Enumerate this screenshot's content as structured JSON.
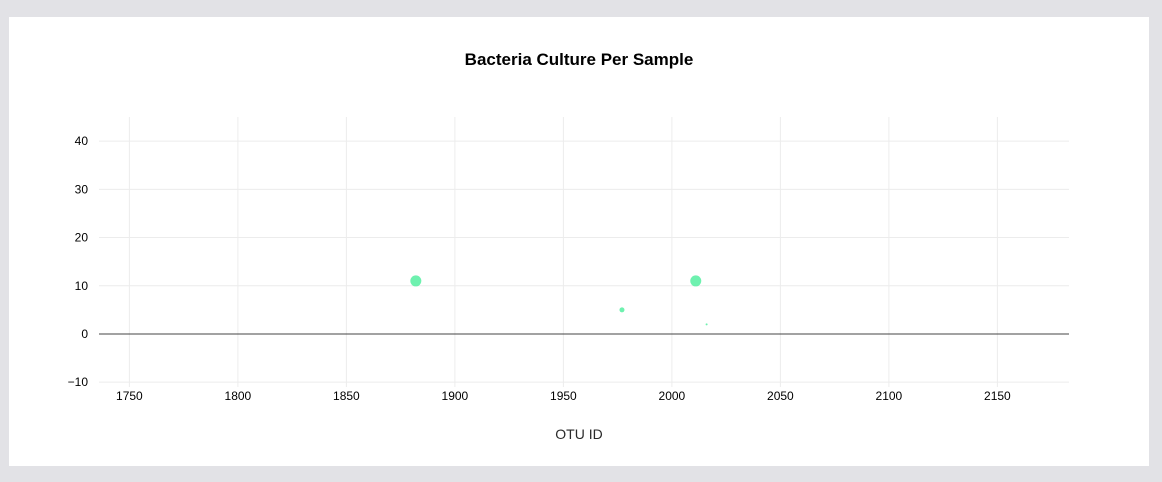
{
  "chart_data": {
    "type": "scatter",
    "title": "Bacteria Culture Per Sample",
    "xlabel": "OTU ID",
    "ylabel": "",
    "xlim": [
      1736,
      2183
    ],
    "ylim": [
      -11,
      45
    ],
    "xticks": [
      1750,
      1800,
      1850,
      1900,
      1950,
      2000,
      2050,
      2100,
      2150
    ],
    "yticks": [
      -10,
      0,
      10,
      20,
      30,
      40
    ],
    "ytick_labels": [
      "−10",
      "0",
      "10",
      "20",
      "30",
      "40"
    ],
    "grid": true,
    "zero_line": true,
    "marker_color": "#5ef0a6",
    "series": [
      {
        "x": [
          1882,
          1977,
          2011,
          2016
        ],
        "y": [
          11,
          5,
          11,
          2
        ],
        "marker_size": [
          11,
          5,
          11,
          2
        ]
      }
    ]
  }
}
